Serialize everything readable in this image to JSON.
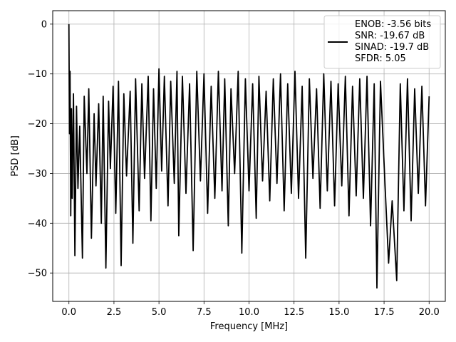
{
  "chart_data": {
    "type": "line",
    "title": "",
    "xlabel": "Frequency [MHz]",
    "ylabel": "PSD [dB]",
    "xlim": [
      -0.9,
      20.9
    ],
    "ylim": [
      -55.7,
      2.7
    ],
    "x_ticks": [
      0.0,
      2.5,
      5.0,
      7.5,
      10.0,
      12.5,
      15.0,
      17.5,
      20.0
    ],
    "x_tick_labels": [
      "0.0",
      "2.5",
      "5.0",
      "7.5",
      "10.0",
      "12.5",
      "15.0",
      "17.5",
      "20.0"
    ],
    "y_ticks": [
      0,
      -10,
      -20,
      -30,
      -40,
      -50
    ],
    "y_tick_labels": [
      "0",
      "−10",
      "−20",
      "−30",
      "−40",
      "−50"
    ],
    "grid": true,
    "legend_position": "top-right",
    "line_color": "#000000",
    "series": [
      {
        "name": "ENOB: -3.56 bits\nSNR: -19.67 dB\nSINAD: -19.7 dB\nSFDR: 5.05",
        "x": [
          0.0,
          0.03,
          0.06,
          0.1,
          0.14,
          0.18,
          0.25,
          0.33,
          0.42,
          0.5,
          0.6,
          0.75,
          0.85,
          1.0,
          1.1,
          1.25,
          1.4,
          1.5,
          1.65,
          1.8,
          1.9,
          2.05,
          2.2,
          2.3,
          2.45,
          2.6,
          2.75,
          2.9,
          3.05,
          3.2,
          3.4,
          3.55,
          3.7,
          3.9,
          4.05,
          4.2,
          4.4,
          4.55,
          4.7,
          4.85,
          5.0,
          5.15,
          5.3,
          5.5,
          5.65,
          5.85,
          6.0,
          6.1,
          6.3,
          6.5,
          6.7,
          6.9,
          7.1,
          7.3,
          7.5,
          7.7,
          7.9,
          8.1,
          8.3,
          8.5,
          8.65,
          8.85,
          9.0,
          9.2,
          9.4,
          9.6,
          9.8,
          10.0,
          10.2,
          10.4,
          10.55,
          10.75,
          10.95,
          11.15,
          11.35,
          11.55,
          11.75,
          11.95,
          12.15,
          12.35,
          12.55,
          12.75,
          12.95,
          13.15,
          13.35,
          13.55,
          13.75,
          13.95,
          14.15,
          14.35,
          14.55,
          14.75,
          14.95,
          15.15,
          15.35,
          15.55,
          15.75,
          15.95,
          16.15,
          16.35,
          16.55,
          16.75,
          16.95,
          17.1,
          17.3,
          17.55,
          17.75,
          17.95,
          18.2,
          18.4,
          18.6,
          18.8,
          19.0,
          19.2,
          19.4,
          19.6,
          19.8,
          20.0
        ],
        "y": [
          0.0,
          -22.0,
          -9.5,
          -38.5,
          -17.0,
          -35.0,
          -14.0,
          -46.5,
          -16.5,
          -33.0,
          -20.5,
          -47.0,
          -14.5,
          -30.0,
          -13.0,
          -43.0,
          -18.0,
          -32.5,
          -16.0,
          -40.0,
          -14.5,
          -49.0,
          -15.5,
          -29.0,
          -12.5,
          -38.0,
          -11.5,
          -48.5,
          -14.0,
          -30.5,
          -13.5,
          -44.0,
          -11.0,
          -37.5,
          -12.0,
          -31.0,
          -10.5,
          -39.5,
          -13.0,
          -33.0,
          -9.0,
          -29.5,
          -10.5,
          -36.5,
          -11.5,
          -32.0,
          -9.5,
          -42.5,
          -10.5,
          -34.0,
          -12.0,
          -45.5,
          -9.5,
          -31.5,
          -10.0,
          -38.0,
          -12.5,
          -35.0,
          -9.5,
          -33.5,
          -11.0,
          -40.5,
          -13.0,
          -30.0,
          -9.5,
          -46.0,
          -11.0,
          -33.5,
          -12.0,
          -39.0,
          -10.5,
          -31.5,
          -13.5,
          -35.5,
          -11.0,
          -32.0,
          -10.0,
          -37.5,
          -12.0,
          -34.0,
          -9.5,
          -35.0,
          -12.5,
          -47.0,
          -11.0,
          -31.0,
          -13.0,
          -37.0,
          -10.0,
          -33.5,
          -11.5,
          -36.5,
          -12.0,
          -32.5,
          -10.5,
          -38.5,
          -12.5,
          -34.5,
          -11.0,
          -35.0,
          -10.5,
          -40.5,
          -12.0,
          -53.0,
          -11.5,
          -32.0,
          -48.0,
          -35.5,
          -51.5,
          -12.0,
          -37.5,
          -11.0,
          -39.5,
          -13.0,
          -34.0,
          -12.5,
          -36.5,
          -14.5
        ]
      }
    ]
  }
}
